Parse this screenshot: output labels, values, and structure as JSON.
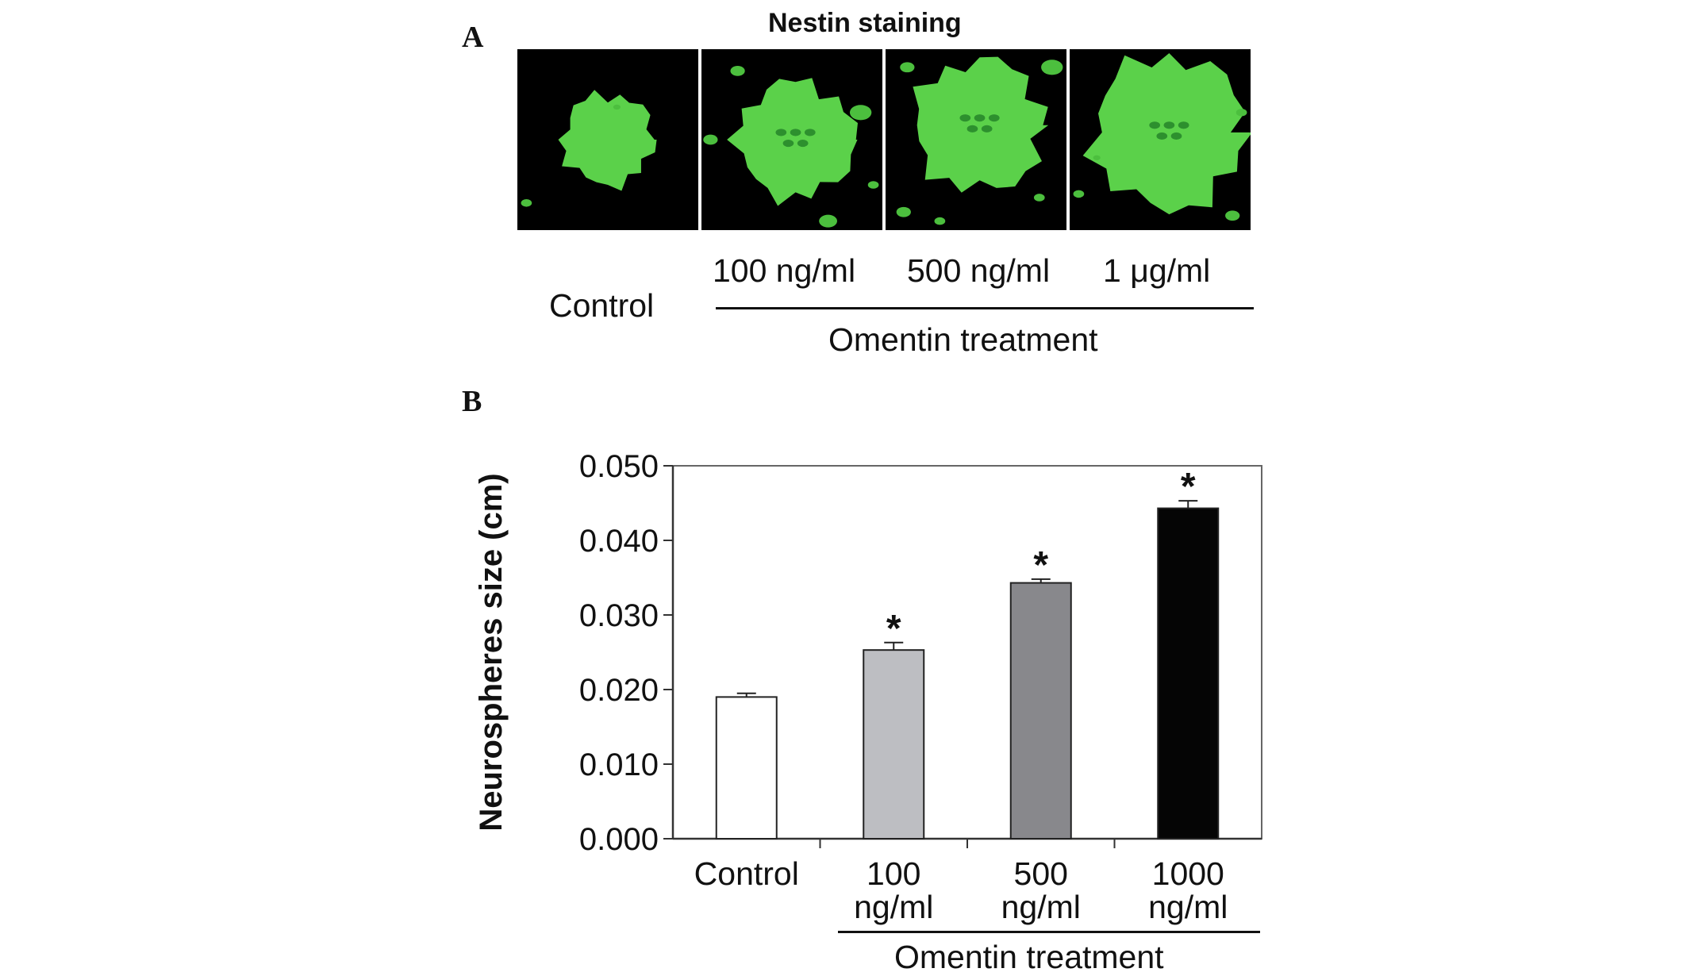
{
  "panel_a": {
    "letter": "A",
    "title": "Nestin staining",
    "images": [
      {
        "name": "control",
        "spot": {
          "r": 0.25,
          "color": "#5bd14a"
        }
      },
      {
        "name": "100",
        "spot": {
          "r": 0.32,
          "color": "#5bd14a"
        }
      },
      {
        "name": "500",
        "spot": {
          "r": 0.36,
          "color": "#5bd14a"
        }
      },
      {
        "name": "1ug",
        "spot": {
          "r": 0.42,
          "color": "#5bd14a"
        }
      }
    ],
    "control_label": "Control",
    "dose_labels": [
      "100 ng/ml",
      "500 ng/ml",
      "1 μg/ml"
    ],
    "group_label": "Omentin treatment"
  },
  "panel_b": {
    "letter": "B",
    "group_label": "Omentin treatment"
  },
  "chart_data": {
    "type": "bar",
    "categories": [
      "Control",
      "100 ng/ml",
      "500 ng/ml",
      "1000 ng/ml"
    ],
    "category_lines": [
      [
        "Control"
      ],
      [
        "100",
        "ng/ml"
      ],
      [
        "500",
        "ng/ml"
      ],
      [
        "1000",
        "ng/ml"
      ]
    ],
    "values": [
      0.019,
      0.0253,
      0.0343,
      0.0443
    ],
    "errors": [
      0.0005,
      0.001,
      0.0005,
      0.001
    ],
    "significance": [
      "",
      "*",
      "*",
      "*"
    ],
    "bar_colors": [
      "#ffffff",
      "#bdbec2",
      "#88888c",
      "#050505"
    ],
    "ylabel": "Neurospheres size (cm)",
    "xlabel": "",
    "ylim": [
      0,
      0.05
    ],
    "yticks": [
      "0.000",
      "0.010",
      "0.020",
      "0.030",
      "0.040",
      "0.050"
    ],
    "ytick_values": [
      0,
      0.01,
      0.02,
      0.03,
      0.04,
      0.05
    ],
    "grid": false,
    "legend": "none"
  }
}
